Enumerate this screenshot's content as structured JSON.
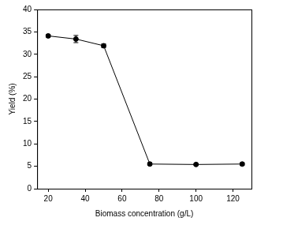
{
  "chart_data": {
    "type": "line",
    "x_label": "Biomass concentration (g/L)",
    "y_label": "Yield (%)",
    "x": [
      20,
      35,
      50,
      75,
      100,
      125
    ],
    "values": [
      34.1,
      33.4,
      31.9,
      5.5,
      5.4,
      5.5
    ],
    "errors": [
      0.3,
      0.8,
      0.4,
      0.3,
      0.2,
      0.3
    ],
    "color": "#000000",
    "marker": "circle",
    "xlim": [
      14,
      130
    ],
    "xticks": [
      20,
      40,
      60,
      80,
      100,
      120
    ],
    "ylim": [
      0,
      40
    ],
    "yticks": [
      0,
      5,
      10,
      15,
      20,
      25,
      30,
      35,
      40
    ],
    "grid": false
  }
}
